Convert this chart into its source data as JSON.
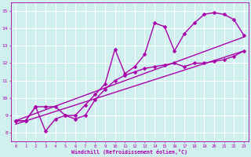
{
  "xlabel": "Windchill (Refroidissement éolien,°C)",
  "bg_color": "#d0f0f0",
  "grid_color": "#ffffff",
  "line_color": "#aa00aa",
  "xlim": [
    -0.5,
    23.5
  ],
  "ylim": [
    7.5,
    15.5
  ],
  "xticks": [
    0,
    1,
    2,
    3,
    4,
    5,
    6,
    7,
    8,
    9,
    10,
    11,
    12,
    13,
    14,
    15,
    16,
    17,
    18,
    19,
    20,
    21,
    22,
    23
  ],
  "yticks": [
    8,
    9,
    10,
    11,
    12,
    13,
    14,
    15
  ],
  "series": [
    {
      "x": [
        0,
        1,
        2,
        3,
        4,
        5,
        6,
        7,
        8,
        9,
        10,
        11,
        12,
        13,
        14,
        15,
        16,
        17,
        18,
        19,
        20,
        21,
        22,
        23
      ],
      "y": [
        8.7,
        8.7,
        9.5,
        9.5,
        9.5,
        9.0,
        8.8,
        9.0,
        9.9,
        10.5,
        11.0,
        11.3,
        11.5,
        11.7,
        11.8,
        11.9,
        12.0,
        11.8,
        12.0,
        12.0,
        12.1,
        12.2,
        12.4,
        12.7
      ],
      "marker": "D",
      "markersize": 2.5,
      "linewidth": 1.0
    },
    {
      "x": [
        0,
        23
      ],
      "y": [
        8.5,
        12.7
      ],
      "marker": null,
      "markersize": 0,
      "linewidth": 1.0
    },
    {
      "x": [
        0,
        23
      ],
      "y": [
        8.7,
        13.5
      ],
      "marker": null,
      "markersize": 0,
      "linewidth": 1.0
    },
    {
      "x": [
        0,
        1,
        2,
        3,
        4,
        5,
        6,
        7,
        8,
        9,
        10,
        11,
        12,
        13,
        14,
        15,
        16,
        17,
        18,
        19,
        20,
        21,
        22,
        23
      ],
      "y": [
        8.7,
        8.7,
        9.5,
        8.1,
        8.8,
        9.0,
        9.0,
        9.6,
        10.2,
        10.8,
        12.8,
        11.4,
        11.8,
        12.5,
        14.3,
        14.1,
        12.7,
        13.7,
        14.3,
        14.8,
        14.9,
        14.8,
        14.5,
        13.6
      ],
      "marker": "D",
      "markersize": 2.5,
      "linewidth": 1.0
    }
  ]
}
